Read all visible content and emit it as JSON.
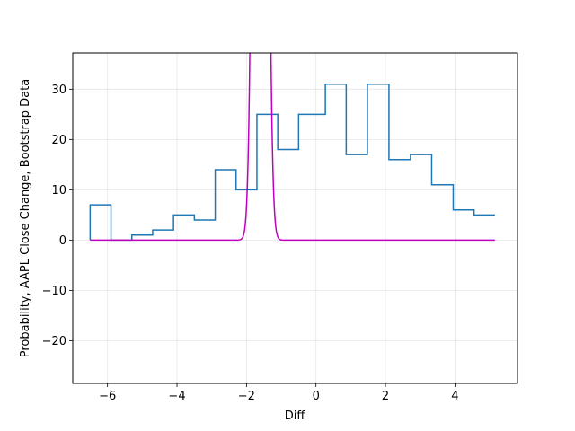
{
  "chart_data": {
    "type": "line",
    "title": "",
    "xlabel": "Diff",
    "ylabel": "Probability, AAPL Close Change, Bootstrap Data",
    "xlim": [
      -7.0,
      5.8
    ],
    "ylim": [
      -28.5,
      37.2
    ],
    "xticks": [
      -6,
      -4,
      -2,
      0,
      2,
      4
    ],
    "yticks": [
      -20,
      -10,
      0,
      10,
      20,
      30
    ],
    "xtick_labels": [
      "−6",
      "−4",
      "−2",
      "0",
      "2",
      "4"
    ],
    "ytick_labels": [
      "−20",
      "−10",
      "0",
      "10",
      "20",
      "30"
    ],
    "grid": true,
    "legend": "none",
    "series": [
      {
        "kind": "step",
        "color": "#1f77b4",
        "x": [
          -6.5,
          -6.5,
          -5.9,
          -5.3,
          -4.7,
          -4.1,
          -3.5,
          -2.9,
          -2.3,
          -1.7,
          -1.1,
          -0.5,
          0.27,
          0.87,
          1.48,
          2.1,
          2.72,
          3.33,
          3.95,
          4.55,
          5.15
        ],
        "y": [
          0,
          7,
          0,
          1,
          2,
          5,
          4,
          14,
          10,
          25,
          18,
          25,
          31,
          17,
          31,
          16,
          17,
          11,
          6,
          5,
          5
        ]
      },
      {
        "kind": "gaussian",
        "color": "#bf00bf",
        "x_range": [
          -6.5,
          5.15
        ],
        "mean": -1.6,
        "std": 0.14,
        "peak": 390
      }
    ]
  }
}
